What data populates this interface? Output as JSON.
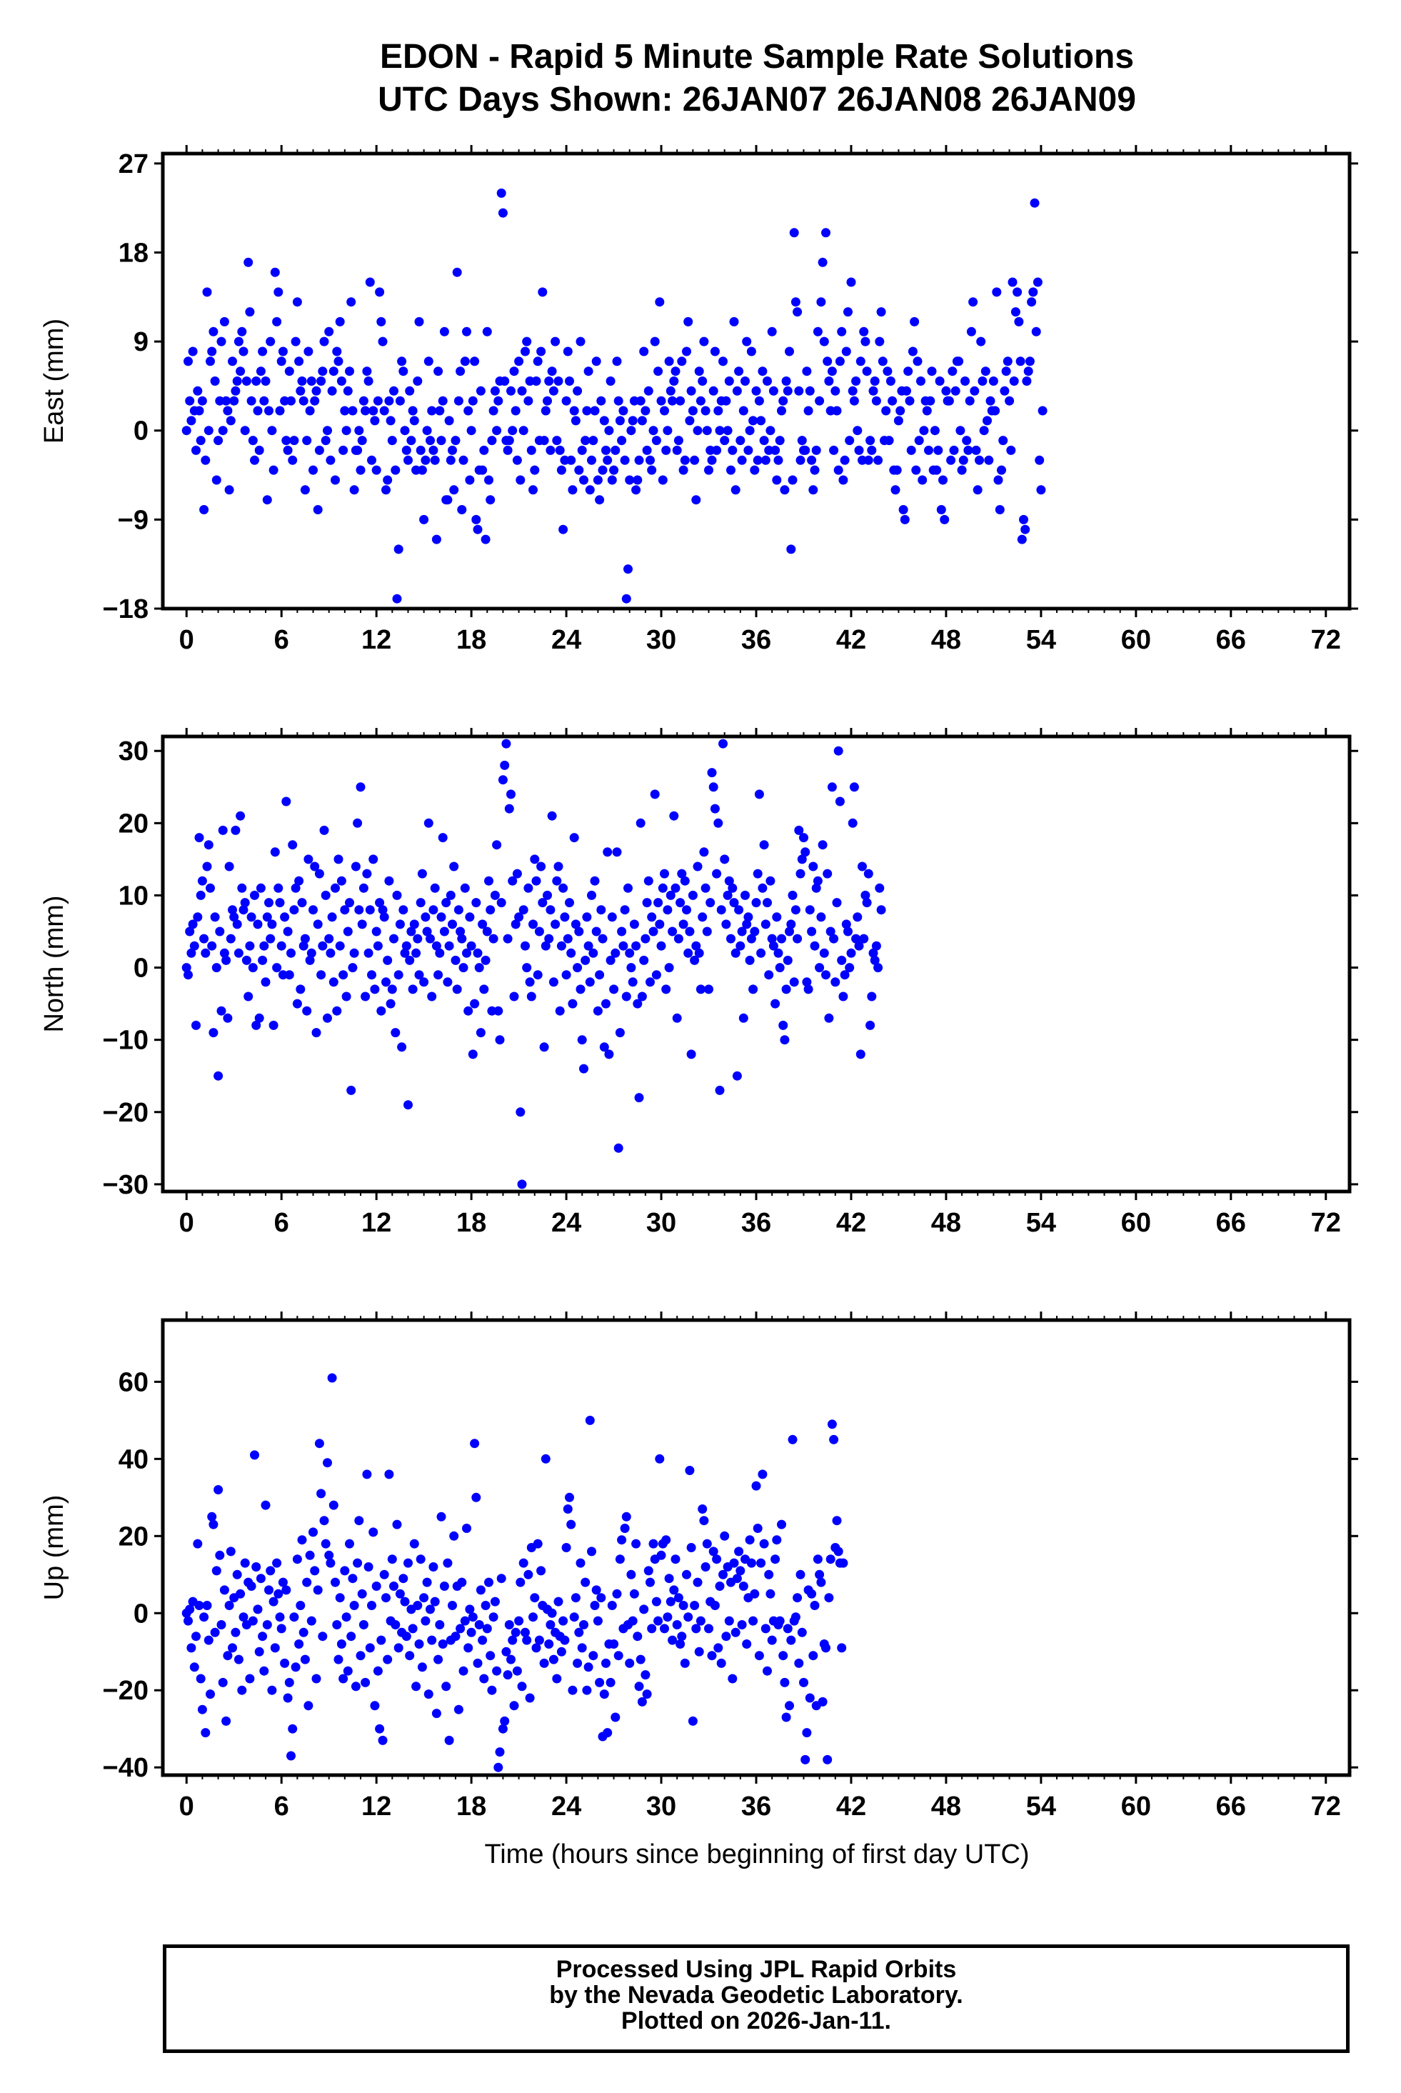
{
  "title": {
    "line1": "EDON - Rapid 5 Minute Sample Rate Solutions",
    "line2": "UTC Days Shown:  26JAN07 26JAN08 26JAN09"
  },
  "xlabel": "Time (hours since beginning of first day UTC)",
  "footer": {
    "line1": "Processed Using JPL Rapid Orbits",
    "line2": "by the Nevada Geodetic Laboratory.",
    "line3": "Plotted on 2026-Jan-11."
  },
  "colors": {
    "points": "#0000ff",
    "axes": "#000000",
    "background": "#ffffff"
  },
  "chart_data": [
    {
      "type": "scatter",
      "ylabel": "East (mm)",
      "xlim": [
        -1.5,
        73.5
      ],
      "ylim": [
        -18,
        28
      ],
      "xticks": [
        0,
        6,
        12,
        18,
        24,
        30,
        36,
        42,
        48,
        54,
        60,
        66,
        72
      ],
      "yticks": [
        27,
        18,
        9,
        0,
        -9,
        -18
      ],
      "ytick_labels": [
        "27",
        "18",
        "9",
        "0",
        "−9",
        "−18"
      ],
      "x_start": 0,
      "x_step": 0.1,
      "y": [
        0,
        7,
        3,
        1,
        8,
        2,
        -2,
        4,
        2,
        -1,
        3,
        -8,
        -3,
        14,
        0,
        7,
        8,
        10,
        5,
        -5,
        -1,
        3,
        9,
        0,
        11,
        3,
        2,
        -6,
        1,
        7,
        3,
        4,
        5,
        9,
        6,
        10,
        8,
        0,
        5,
        17,
        12,
        3,
        -1,
        -3,
        5,
        2,
        -2,
        6,
        8,
        3,
        5,
        -7,
        2,
        9,
        0,
        -4,
        16,
        11,
        14,
        2,
        7,
        8,
        3,
        -1,
        -2,
        6,
        3,
        -3,
        -1,
        9,
        13,
        7,
        4,
        5,
        3,
        -6,
        -1,
        8,
        2,
        5,
        -4,
        3,
        4,
        -8,
        -2,
        5,
        6,
        9,
        -1,
        0,
        10,
        -3,
        4,
        6,
        -5,
        8,
        7,
        11,
        5,
        -2,
        2,
        0,
        4,
        6,
        13,
        2,
        -6,
        -2,
        -2,
        0,
        -4,
        -1,
        3,
        2,
        6,
        5,
        15,
        -3,
        2,
        1,
        -4,
        3,
        14,
        11,
        9,
        2,
        -6,
        -5,
        3,
        1,
        -1,
        4,
        -4,
        -17,
        -12,
        3,
        7,
        6,
        0,
        -2,
        -3,
        4,
        -1,
        2,
        1,
        -4,
        5,
        11,
        -2,
        -4,
        -9,
        -3,
        0,
        7,
        -1,
        2,
        -2,
        -3,
        -11,
        6,
        2,
        -1,
        3,
        10,
        -7,
        -7,
        1,
        -3,
        -2,
        -6,
        -1,
        16,
        3,
        6,
        -8,
        -3,
        7,
        10,
        2,
        -5,
        0,
        3,
        7,
        -9,
        -10,
        -4,
        4,
        -4,
        -2,
        -11,
        10,
        -5,
        -7,
        -1,
        2,
        4,
        0,
        3,
        5,
        24,
        22,
        5,
        -1,
        -2,
        -1,
        4,
        0,
        6,
        2,
        -3,
        7,
        -5,
        4,
        0,
        8,
        9,
        3,
        5,
        -2,
        -6,
        -4,
        5,
        7,
        -1,
        8,
        14,
        -1,
        2,
        3,
        5,
        -2,
        6,
        4,
        9,
        -1,
        5,
        -2,
        -4,
        -10,
        -3,
        3,
        8,
        5,
        -3,
        -6,
        2,
        1,
        4,
        -4,
        9,
        -2,
        -5,
        -1,
        2,
        6,
        -6,
        -3,
        -1,
        2,
        7,
        -5,
        -7,
        3,
        -4,
        1,
        -2,
        -3,
        0,
        5,
        -5,
        -4,
        -2,
        7,
        3,
        1,
        -1,
        2,
        -3,
        -17,
        -14,
        -5,
        0,
        1,
        3,
        -6,
        -5,
        -3,
        3,
        1,
        8,
        2,
        -2,
        4,
        -3,
        -4,
        0,
        9,
        -1,
        6,
        13,
        3,
        -5,
        2,
        -2,
        0,
        7,
        4,
        3,
        5,
        6,
        -2,
        -1,
        3,
        7,
        -4,
        -3,
        8,
        11,
        1,
        4,
        2,
        -3,
        -7,
        0,
        6,
        3,
        5,
        9,
        2,
        0,
        -4,
        -2,
        -3,
        4,
        8,
        -2,
        2,
        0,
        3,
        7,
        -1,
        3,
        0,
        5,
        -4,
        -2,
        11,
        -6,
        4,
        6,
        -1,
        -3,
        2,
        5,
        9,
        -2,
        0,
        8,
        1,
        -4,
        4,
        -3,
        3,
        1,
        6,
        -1,
        -3,
        5,
        -2,
        0,
        10,
        4,
        -2,
        -5,
        -3,
        -1,
        2,
        3,
        -6,
        5,
        4,
        8,
        -12,
        -5,
        20,
        13,
        12,
        4,
        -3,
        -1,
        -2,
        -2,
        6,
        2,
        4,
        -3,
        -6,
        -4,
        -2,
        10,
        3,
        13,
        17,
        9,
        20,
        7,
        5,
        2,
        6,
        -2,
        4,
        2,
        -4,
        7,
        10,
        -5,
        -3,
        8,
        12,
        -1,
        15,
        4,
        3,
        5,
        0,
        -2,
        7,
        -3,
        10,
        9,
        6,
        -3,
        -1,
        -2,
        4,
        5,
        3,
        -3,
        9,
        12,
        7,
        -1,
        2,
        6,
        -1,
        5,
        3,
        -4,
        -6,
        -4,
        1,
        2,
        4,
        -8,
        -9,
        4,
        6,
        3,
        -2,
        8,
        11,
        -4,
        7,
        -1,
        5,
        -5,
        0,
        3,
        2,
        -2,
        3,
        6,
        -4,
        0,
        -4,
        -2,
        5,
        -8,
        -5,
        -9,
        4,
        3,
        3,
        -3,
        6,
        -2,
        4,
        7,
        7,
        0,
        -4,
        -3,
        5,
        -1,
        -2,
        3,
        10,
        13,
        4,
        -2,
        -6,
        -3,
        9,
        5,
        0,
        6,
        1,
        -3,
        3,
        2,
        5,
        2,
        14,
        -5,
        -8,
        -4,
        -1,
        4,
        6,
        7,
        3,
        -2,
        15,
        5,
        12,
        14,
        11,
        7,
        -11,
        -9,
        -10,
        5,
        6,
        7,
        13,
        14,
        23,
        10,
        15,
        -3,
        -6,
        2
      ]
    },
    {
      "type": "scatter",
      "ylabel": "North (mm)",
      "xlim": [
        -1.5,
        73.5
      ],
      "ylim": [
        -31,
        32
      ],
      "xticks": [
        0,
        6,
        12,
        18,
        24,
        30,
        36,
        42,
        48,
        54,
        60,
        66,
        72
      ],
      "yticks": [
        30,
        20,
        10,
        0,
        -10,
        -20,
        -30
      ],
      "ytick_labels": [
        "30",
        "20",
        "10",
        "0",
        "−10",
        "−20",
        "−30"
      ],
      "x_start": 0,
      "x_step": 0.1,
      "y": [
        0,
        -1,
        5,
        2,
        6,
        3,
        -8,
        7,
        18,
        10,
        12,
        4,
        2,
        14,
        17,
        11,
        3,
        -9,
        7,
        0,
        -15,
        5,
        -6,
        19,
        2,
        1,
        -7,
        14,
        4,
        8,
        7,
        19,
        6,
        2,
        21,
        11,
        8,
        9,
        1,
        -4,
        3,
        7,
        0,
        10,
        -8,
        6,
        -7,
        11,
        1,
        3,
        -2,
        7,
        9,
        4,
        6,
        -8,
        16,
        0,
        11,
        9,
        3,
        -1,
        7,
        23,
        5,
        -1,
        2,
        17,
        8,
        11,
        -5,
        12,
        -3,
        9,
        3,
        4,
        -6,
        15,
        1,
        2,
        8,
        14,
        -9,
        6,
        13,
        -1,
        3,
        19,
        10,
        -7,
        4,
        2,
        7,
        -2,
        11,
        -6,
        15,
        3,
        12,
        -1,
        8,
        -4,
        5,
        9,
        -17,
        0,
        2,
        14,
        20,
        8,
        25,
        6,
        11,
        -4,
        13,
        2,
        8,
        -1,
        15,
        -3,
        5,
        3,
        9,
        -6,
        8,
        7,
        -2,
        1,
        12,
        -5,
        -3,
        4,
        -9,
        10,
        -1,
        6,
        -11,
        8,
        2,
        3,
        -19,
        1,
        5,
        -3,
        6,
        2,
        4,
        -1,
        9,
        13,
        -2,
        7,
        5,
        20,
        4,
        -4,
        8,
        11,
        3,
        -1,
        2,
        7,
        18,
        5,
        9,
        -2,
        3,
        10,
        6,
        14,
        1,
        -3,
        8,
        5,
        4,
        0,
        11,
        2,
        -6,
        7,
        3,
        -12,
        -5,
        9,
        2,
        0,
        -9,
        6,
        -3,
        1,
        5,
        12,
        8,
        -6,
        4,
        10,
        17,
        -6,
        -10,
        9,
        26,
        28,
        31,
        4,
        22,
        24,
        12,
        -4,
        6,
        13,
        7,
        -20,
        -30,
        8,
        3,
        0,
        11,
        -2,
        -4,
        6,
        15,
        12,
        -1,
        5,
        14,
        9,
        -11,
        3,
        10,
        4,
        8,
        21,
        -2,
        6,
        12,
        14,
        -6,
        3,
        11,
        7,
        -1,
        4,
        9,
        2,
        -5,
        18,
        6,
        0,
        5,
        -3,
        -10,
        -14,
        1,
        7,
        3,
        -2,
        10,
        2,
        12,
        5,
        -6,
        -1,
        8,
        4,
        -11,
        -5,
        16,
        -12,
        1,
        7,
        -3,
        2,
        16,
        -25,
        -9,
        5,
        3,
        8,
        -4,
        11,
        2,
        0,
        -2,
        6,
        3,
        -5,
        -18,
        20,
        -4,
        1,
        4,
        9,
        12,
        -2,
        7,
        5,
        24,
        -1,
        9,
        6,
        3,
        11,
        13,
        -3,
        8,
        0,
        10,
        5,
        21,
        11,
        -7,
        4,
        9,
        13,
        6,
        12,
        8,
        2,
        5,
        -12,
        10,
        1,
        3,
        14,
        2,
        -3,
        7,
        16,
        11,
        5,
        -3,
        9,
        27,
        25,
        22,
        13,
        20,
        -17,
        8,
        31,
        15,
        6,
        10,
        12,
        4,
        11,
        9,
        2,
        -15,
        8,
        3,
        5,
        -7,
        10,
        6,
        7,
        1,
        4,
        -3,
        5,
        9,
        13,
        24,
        2,
        11,
        17,
        6,
        9,
        -1,
        12,
        4,
        3,
        -5,
        7,
        2,
        0,
        4,
        -8,
        -10,
        -3,
        1,
        5,
        6,
        10,
        -2,
        8,
        4,
        19,
        13,
        15,
        18,
        16,
        -2,
        -3,
        8,
        5,
        14,
        3,
        11,
        12,
        0,
        7,
        17,
        2,
        -1,
        13,
        -7,
        5,
        25,
        4,
        -2,
        9,
        30,
        23,
        1,
        -4,
        -1,
        6,
        5,
        0,
        2,
        20,
        25,
        4,
        7,
        3,
        -12,
        14,
        4,
        10,
        9,
        13,
        -8,
        -4,
        2,
        1,
        3,
        0,
        11,
        8
      ]
    },
    {
      "type": "scatter",
      "ylabel": "Up (mm)",
      "xlim": [
        -1.5,
        73.5
      ],
      "ylim": [
        -42,
        76
      ],
      "xticks": [
        0,
        6,
        12,
        18,
        24,
        30,
        36,
        42,
        48,
        54,
        60,
        66,
        72
      ],
      "yticks": [
        60,
        40,
        20,
        0,
        -20,
        -40
      ],
      "ytick_labels": [
        "60",
        "40",
        "20",
        "0",
        "−20",
        "−40"
      ],
      "x_start": 0,
      "x_step": 0.1,
      "y": [
        0,
        -2,
        1,
        -9,
        3,
        -14,
        -6,
        18,
        2,
        -17,
        -25,
        -1,
        -31,
        2,
        -7,
        -21,
        25,
        23,
        -5,
        11,
        32,
        15,
        -3,
        -18,
        6,
        -28,
        -11,
        2,
        16,
        -9,
        4,
        -5,
        10,
        -12,
        5,
        -20,
        -1,
        13,
        -3,
        8,
        -17,
        7,
        -2,
        41,
        12,
        1,
        -10,
        9,
        -6,
        -15,
        28,
        -3,
        6,
        11,
        -20,
        3,
        -9,
        13,
        5,
        -1,
        -4,
        8,
        -13,
        6,
        -22,
        -18,
        -37,
        -30,
        -1,
        -14,
        14,
        -8,
        2,
        19,
        -5,
        -12,
        8,
        -24,
        15,
        -2,
        21,
        11,
        -17,
        6,
        44,
        31,
        -6,
        24,
        18,
        39,
        15,
        13,
        61,
        28,
        8,
        -3,
        -12,
        4,
        -8,
        -17,
        11,
        -1,
        -15,
        18,
        -6,
        9,
        2,
        -19,
        13,
        24,
        -11,
        5,
        -3,
        -18,
        36,
        12,
        -9,
        2,
        21,
        -24,
        7,
        -15,
        -30,
        -7,
        -33,
        10,
        4,
        -12,
        36,
        -2,
        14,
        7,
        -3,
        23,
        -9,
        5,
        -5,
        9,
        3,
        -6,
        13,
        -11,
        1,
        -4,
        18,
        -19,
        2,
        -8,
        14,
        -14,
        4,
        -2,
        8,
        -21,
        1,
        -7,
        12,
        3,
        -26,
        -12,
        -3,
        25,
        -8,
        7,
        -19,
        13,
        -33,
        -7,
        2,
        20,
        -6,
        7,
        -25,
        -4,
        8,
        -15,
        -2,
        22,
        -9,
        1,
        -5,
        -1,
        44,
        30,
        -13,
        -3,
        6,
        -7,
        -17,
        2,
        -4,
        8,
        -11,
        -20,
        -1,
        3,
        -15,
        -40,
        -36,
        9,
        -30,
        -28,
        -10,
        -16,
        -3,
        -12,
        -7,
        -24,
        -5,
        -15,
        -2,
        8,
        -19,
        13,
        -5,
        -7,
        10,
        -22,
        17,
        -1,
        4,
        -9,
        18,
        -7,
        11,
        2,
        -13,
        40,
        1,
        -8,
        -3,
        0,
        -12,
        -5,
        -17,
        3,
        -6,
        -10,
        -2,
        -7,
        17,
        27,
        30,
        23,
        -20,
        -1,
        4,
        -13,
        -5,
        13,
        -9,
        -3,
        8,
        -20,
        -14,
        50,
        16,
        -11,
        2,
        6,
        -2,
        -18,
        4,
        -32,
        -21,
        -13,
        -31,
        -8,
        -18,
        2,
        -8,
        -27,
        5,
        -11,
        14,
        19,
        -4,
        22,
        25,
        -3,
        -13,
        10,
        -2,
        5,
        18,
        -6,
        -19,
        -12,
        -23,
        1,
        -16,
        -21,
        11,
        8,
        -4,
        18,
        14,
        3,
        -2,
        40,
        15,
        18,
        -4,
        19,
        -1,
        9,
        3,
        -7,
        6,
        14,
        -3,
        4,
        -8,
        -6,
        2,
        -13,
        10,
        -1,
        37,
        17,
        -28,
        2,
        -4,
        8,
        -10,
        -2,
        27,
        24,
        12,
        18,
        -4,
        3,
        -11,
        16,
        2,
        14,
        -9,
        7,
        -13,
        10,
        20,
        -6,
        12,
        -2,
        8,
        -17,
        13,
        -5,
        9,
        16,
        11,
        -3,
        7,
        14,
        -8,
        4,
        19,
        13,
        -2,
        5,
        33,
        22,
        -11,
        13,
        36,
        18,
        -4,
        -15,
        10,
        5,
        -7,
        -2,
        14,
        19,
        -3,
        -2,
        23,
        -11,
        -18,
        -27,
        -4,
        -24,
        -7,
        45,
        -2,
        -1,
        4,
        -13,
        10,
        -5,
        -18,
        -38,
        -31,
        6,
        -22,
        5,
        -11,
        2,
        -24,
        14,
        10,
        8,
        -23,
        -8,
        -9,
        -38,
        4,
        14,
        49,
        45,
        17,
        24,
        16,
        13,
        -9,
        13
      ]
    }
  ]
}
